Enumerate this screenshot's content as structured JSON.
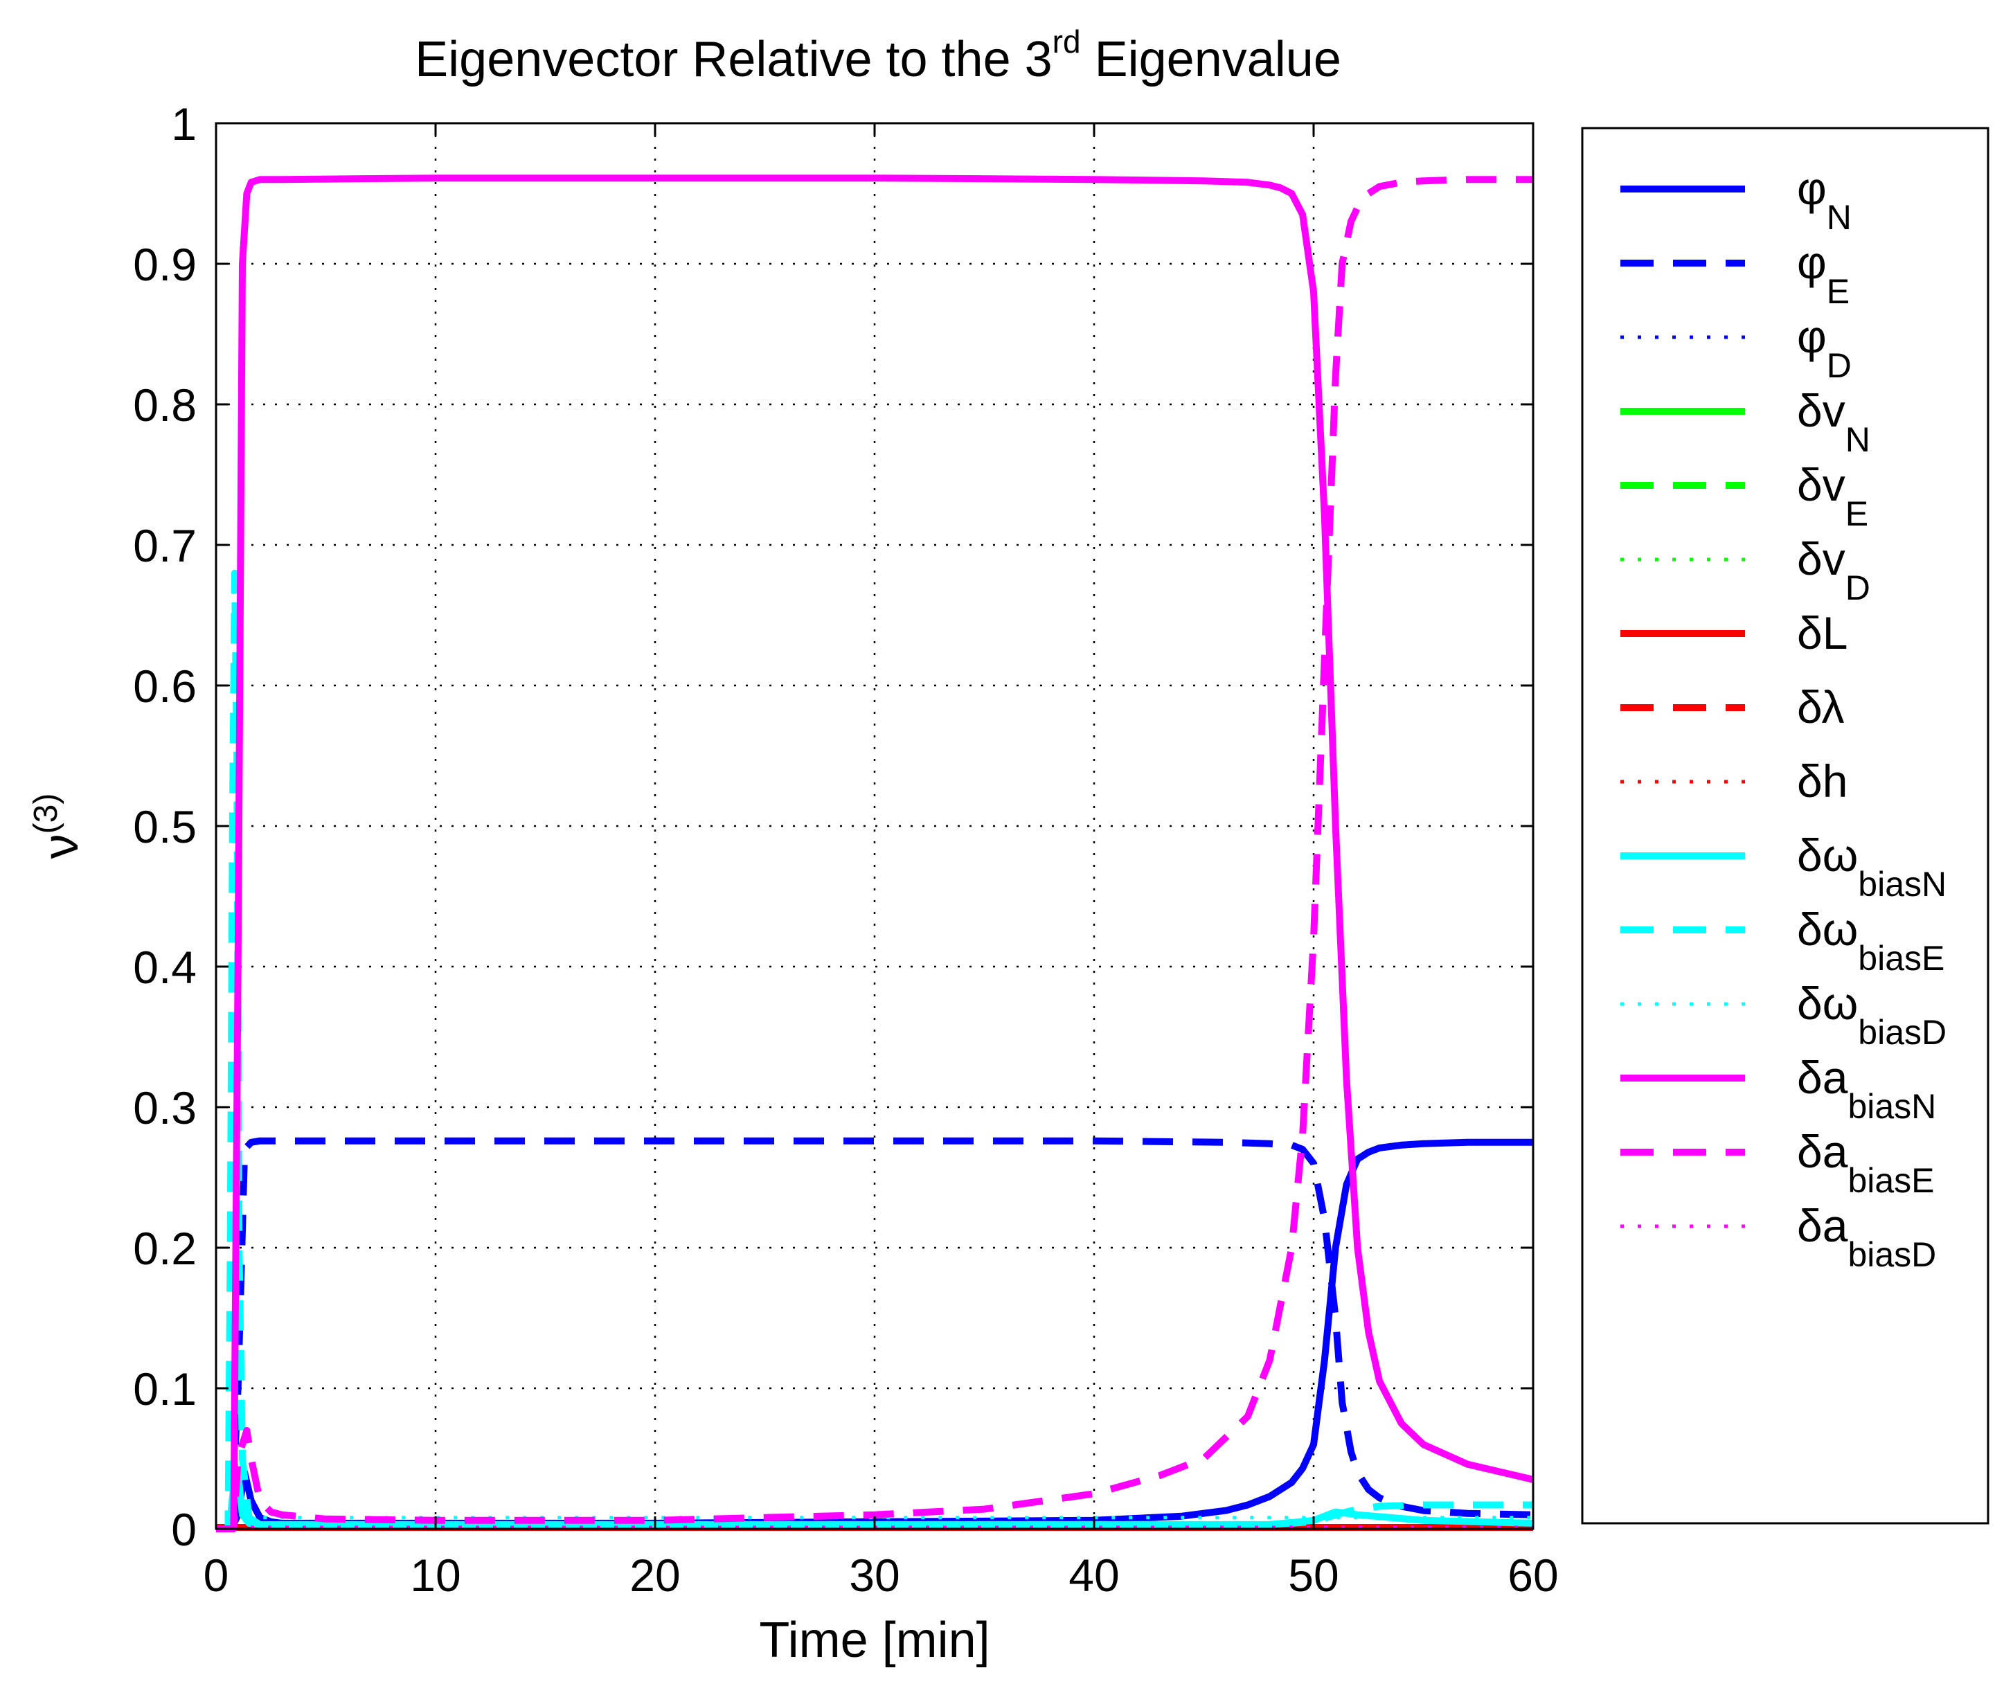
{
  "chart_data": {
    "type": "line",
    "title": "Eigenvector Relative to the 3",
    "title_superscript": "rd",
    "title_suffix": " Eigenvalue",
    "xlabel": "Time [min]",
    "ylabel": "ν",
    "ylabel_superscript": "(3)",
    "xlim": [
      0,
      60
    ],
    "ylim": [
      0,
      1
    ],
    "xticks": [
      0,
      10,
      20,
      30,
      40,
      50,
      60
    ],
    "yticks": [
      0,
      0.1,
      0.2,
      0.3,
      0.4,
      0.5,
      0.6,
      0.7,
      0.8,
      0.9,
      1
    ],
    "ytick_labels": [
      "0",
      "0.1",
      "0.2",
      "0.3",
      "0.4",
      "0.5",
      "0.6",
      "0.7",
      "0.8",
      "0.9",
      "1"
    ],
    "grid": true,
    "legend_position": "outside-right",
    "series": [
      {
        "name": "φ",
        "sub": "N",
        "color": "#0000ff",
        "style": "solid",
        "x": [
          0,
          0.7,
          1.0,
          1.3,
          1.6,
          2.0,
          2.5,
          3,
          10,
          20,
          30,
          40,
          44,
          46,
          47,
          48,
          49,
          49.5,
          50,
          50.5,
          51,
          51.5,
          52,
          52.5,
          53,
          54,
          55,
          57,
          60
        ],
        "y": [
          0,
          0,
          0.01,
          0.04,
          0.02,
          0.008,
          0.005,
          0.004,
          0.004,
          0.004,
          0.005,
          0.006,
          0.009,
          0.013,
          0.017,
          0.023,
          0.033,
          0.043,
          0.06,
          0.12,
          0.2,
          0.245,
          0.263,
          0.268,
          0.271,
          0.273,
          0.274,
          0.275,
          0.275
        ]
      },
      {
        "name": "φ",
        "sub": "E",
        "color": "#0000ff",
        "style": "dashed",
        "x": [
          0,
          0.7,
          1.0,
          1.3,
          1.6,
          2.0,
          10,
          20,
          30,
          40,
          46,
          48,
          49,
          49.5,
          50,
          50.5,
          51,
          51.3,
          51.7,
          52,
          52.5,
          53,
          54,
          55,
          57,
          60
        ],
        "y": [
          0,
          0,
          0.1,
          0.27,
          0.275,
          0.276,
          0.276,
          0.276,
          0.276,
          0.276,
          0.275,
          0.274,
          0.273,
          0.27,
          0.26,
          0.22,
          0.15,
          0.09,
          0.055,
          0.04,
          0.028,
          0.022,
          0.016,
          0.013,
          0.011,
          0.01
        ]
      },
      {
        "name": "φ",
        "sub": "D",
        "color": "#0000ff",
        "style": "dotted",
        "x": [
          0,
          1,
          1.5,
          2.5,
          10,
          30,
          50,
          55,
          60
        ],
        "y": [
          0,
          0,
          0.003,
          0.002,
          0.002,
          0.002,
          0.002,
          0.002,
          0.002
        ]
      },
      {
        "name": "δv",
        "sub": "N",
        "color": "#00ff00",
        "style": "solid",
        "x": [
          0,
          60
        ],
        "y": [
          0.001,
          0.001
        ]
      },
      {
        "name": "δv",
        "sub": "E",
        "color": "#00ff00",
        "style": "dashed",
        "x": [
          0,
          60
        ],
        "y": [
          0.001,
          0.001
        ]
      },
      {
        "name": "δv",
        "sub": "D",
        "color": "#00ff00",
        "style": "dotted",
        "x": [
          0,
          60
        ],
        "y": [
          0.001,
          0.001
        ]
      },
      {
        "name": "δL",
        "sub": "",
        "color": "#ff0000",
        "style": "solid",
        "x": [
          0,
          60
        ],
        "y": [
          0.001,
          0.001
        ]
      },
      {
        "name": "δλ",
        "sub": "",
        "color": "#ff0000",
        "style": "dashed",
        "x": [
          0,
          60
        ],
        "y": [
          0.001,
          0.001
        ]
      },
      {
        "name": "δh",
        "sub": "",
        "color": "#ff0000",
        "style": "dotted",
        "x": [
          0,
          60
        ],
        "y": [
          0.001,
          0.001
        ]
      },
      {
        "name": "δω",
        "sub": "biasN",
        "color": "#00ffff",
        "style": "solid",
        "x": [
          0,
          0.6,
          0.8,
          1.0,
          1.2,
          1.5,
          2,
          10,
          30,
          48,
          50,
          51,
          52,
          55,
          60
        ],
        "y": [
          0,
          0,
          0.03,
          0.04,
          0.01,
          0.004,
          0.003,
          0.003,
          0.003,
          0.003,
          0.006,
          0.012,
          0.01,
          0.006,
          0.004
        ]
      },
      {
        "name": "δω",
        "sub": "biasE",
        "color": "#00ffff",
        "style": "dashed",
        "x": [
          0,
          0.55,
          0.65,
          0.75,
          0.85,
          0.95,
          1.05,
          1.2,
          1.5,
          2,
          10,
          30,
          48,
          50,
          51,
          52,
          53,
          55,
          58,
          60
        ],
        "y": [
          0,
          0,
          0.2,
          0.5,
          0.68,
          0.55,
          0.2,
          0.05,
          0.008,
          0.003,
          0.003,
          0.003,
          0.003,
          0.005,
          0.01,
          0.014,
          0.016,
          0.017,
          0.017,
          0.017
        ]
      },
      {
        "name": "δω",
        "sub": "biasD",
        "color": "#00ffff",
        "style": "dotted",
        "x": [
          0,
          0.8,
          1.0,
          1.3,
          1.6,
          2,
          10,
          30,
          50,
          55,
          60
        ],
        "y": [
          0,
          0,
          0.005,
          0.007,
          0.008,
          0.008,
          0.008,
          0.008,
          0.008,
          0.008,
          0.008
        ]
      },
      {
        "name": "δa",
        "sub": "biasN",
        "color": "#ff00ff",
        "style": "solid",
        "x": [
          0,
          0.8,
          1.0,
          1.2,
          1.4,
          1.6,
          2,
          3,
          10,
          20,
          30,
          40,
          45,
          47,
          48,
          48.5,
          49,
          49.5,
          50,
          50.5,
          51,
          51.5,
          52,
          52.5,
          53,
          54,
          55,
          57,
          60
        ],
        "y": [
          0,
          0,
          0.4,
          0.9,
          0.95,
          0.958,
          0.96,
          0.96,
          0.961,
          0.961,
          0.961,
          0.96,
          0.959,
          0.958,
          0.956,
          0.954,
          0.95,
          0.935,
          0.88,
          0.72,
          0.5,
          0.32,
          0.2,
          0.14,
          0.105,
          0.075,
          0.06,
          0.046,
          0.035
        ]
      },
      {
        "name": "δa",
        "sub": "biasE",
        "color": "#ff00ff",
        "style": "dashed",
        "x": [
          0,
          0.8,
          1.0,
          1.2,
          1.4,
          1.6,
          2.0,
          2.5,
          3,
          5,
          10,
          20,
          30,
          35,
          40,
          43,
          45,
          47,
          48,
          49,
          49.5,
          50,
          50.5,
          51,
          51.3,
          51.7,
          52,
          52.5,
          53,
          54,
          55,
          57,
          60
        ],
        "y": [
          0,
          0,
          0.05,
          0.06,
          0.07,
          0.05,
          0.02,
          0.012,
          0.01,
          0.007,
          0.006,
          0.006,
          0.01,
          0.014,
          0.025,
          0.038,
          0.05,
          0.08,
          0.12,
          0.2,
          0.28,
          0.42,
          0.62,
          0.82,
          0.9,
          0.93,
          0.94,
          0.95,
          0.955,
          0.958,
          0.959,
          0.96,
          0.96
        ]
      },
      {
        "name": "δa",
        "sub": "biasD",
        "color": "#ff00ff",
        "style": "dotted",
        "x": [
          0,
          60
        ],
        "y": [
          0.001,
          0.001
        ]
      }
    ]
  }
}
